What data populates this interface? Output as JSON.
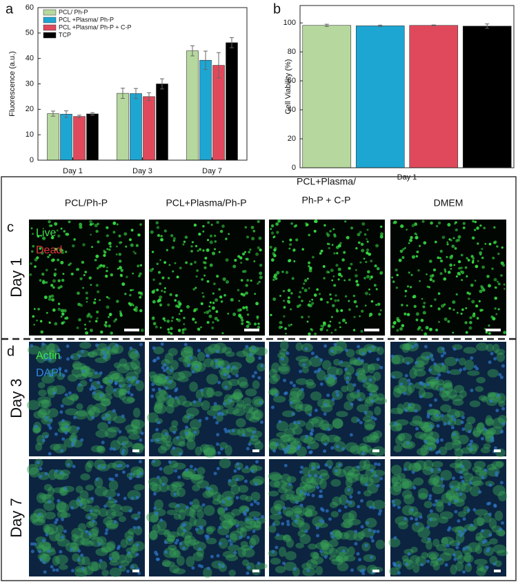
{
  "chart_data": [
    {
      "type": "bar",
      "panel_label": "a",
      "ylabel": "Fluorescence (a.u.)",
      "categories": [
        "Day 1",
        "Day 3",
        "Day 7"
      ],
      "series": [
        {
          "name": "PCL/ Ph-P",
          "color": "#b6d89e",
          "values": [
            18.3,
            26.3,
            43
          ],
          "errors": [
            1,
            2,
            2
          ]
        },
        {
          "name": "PCL +Plasma/ Ph-P",
          "color": "#1ea6d3",
          "values": [
            18.1,
            26.2,
            39.3
          ],
          "errors": [
            1.3,
            2,
            3.6
          ]
        },
        {
          "name": "PCL +Plasma/ Ph-P + C-P",
          "color": "#e0495b",
          "values": [
            17.2,
            25,
            37.3
          ],
          "errors": [
            0.5,
            1.5,
            5
          ]
        },
        {
          "name": "TCP",
          "color": "#000000",
          "values": [
            18.2,
            30,
            46.2
          ],
          "errors": [
            0.5,
            2,
            2
          ]
        }
      ],
      "ylim": [
        0,
        60
      ],
      "yticks": [
        0,
        10,
        20,
        30,
        40,
        50,
        60
      ],
      "legend": "top-left"
    },
    {
      "type": "bar",
      "panel_label": "b",
      "ylabel": "Cell Viability (%)",
      "xlabel": "Day 1",
      "values": [
        98.3,
        98,
        98.3,
        97.8
      ],
      "errors": [
        0.8,
        0.5,
        0.3,
        1.5
      ],
      "colors": [
        "#b6d89e",
        "#1ea6d3",
        "#e0495b",
        "#000000"
      ],
      "ylim": [
        0,
        112
      ],
      "yticks": [
        0,
        20,
        40,
        60,
        80,
        100
      ]
    }
  ],
  "micrographs": {
    "columns": [
      [
        "PCL/Ph-P"
      ],
      [
        "PCL+Plasma/Ph-P"
      ],
      [
        "PCL+Plasma/",
        "Ph-P + C-P"
      ],
      [
        "DMEM"
      ]
    ],
    "rows": [
      "Day 1",
      "Day 3",
      "Day 7"
    ],
    "live_dead": {
      "panel": "c",
      "labels": [
        "Live",
        "Dead"
      ]
    },
    "actin_dapi": {
      "panel": "d",
      "labels": [
        "Actin",
        "DAPI"
      ]
    }
  }
}
